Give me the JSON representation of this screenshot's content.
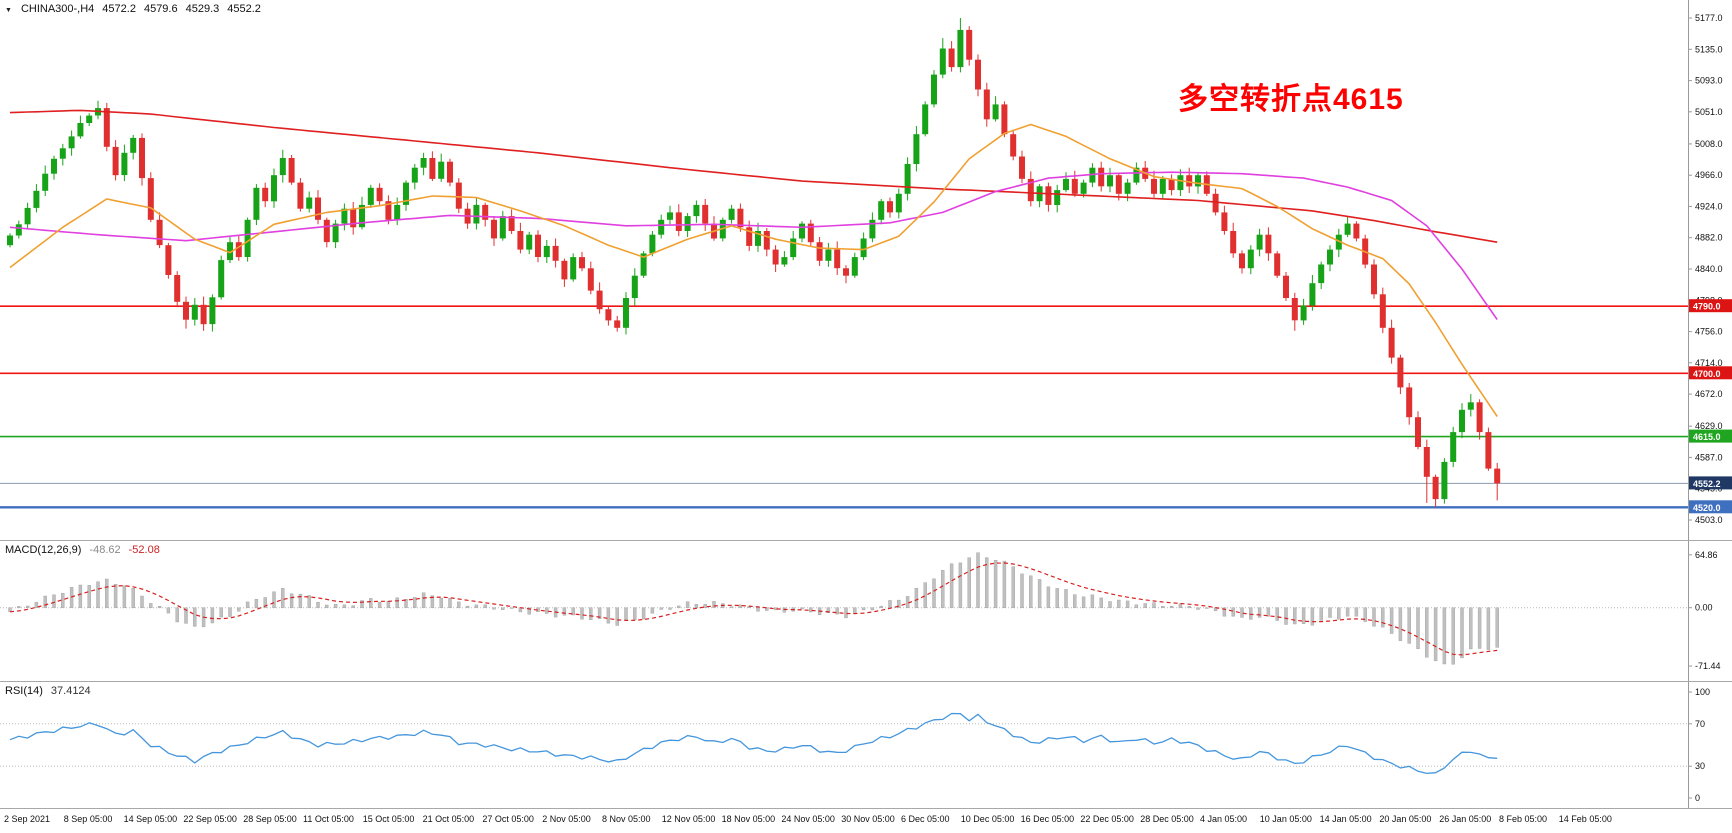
{
  "header": {
    "dropdown_icon": "▼",
    "symbol_period": "CHINA300-,H4",
    "open": "4572.2",
    "high": "4579.6",
    "low": "4529.3",
    "close": "4552.2"
  },
  "chart_data": [
    {
      "type": "candlestick",
      "title": "CHINA300-,H4",
      "annotation": {
        "text": "多空转折点4615",
        "color": "#ff0000"
      },
      "up_color": "#17a317",
      "down_color": "#e02f2f",
      "ylim": [
        4503,
        5177
      ],
      "y_ticks": [
        "5177.0",
        "5135.0",
        "5093.0",
        "5051.0",
        "5008.0",
        "4966.0",
        "4924.0",
        "4882.0",
        "4840.0",
        "4798.0",
        "4756.0",
        "4714.0",
        "4672.0",
        "4629.0",
        "4587.0",
        "4545.0",
        "4503.0"
      ],
      "x_labels": [
        "2 Sep 2021",
        "8 Sep 05:00",
        "14 Sep 05:00",
        "22 Sep 05:00",
        "28 Sep 05:00",
        "11 Oct 05:00",
        "15 Oct 05:00",
        "21 Oct 05:00",
        "27 Oct 05:00",
        "2 Nov 05:00",
        "8 Nov 05:00",
        "12 Nov 05:00",
        "18 Nov 05:00",
        "24 Nov 05:00",
        "30 Nov 05:00",
        "6 Dec 05:00",
        "10 Dec 05:00",
        "16 Dec 05:00",
        "22 Dec 05:00",
        "28 Dec 05:00",
        "4 Jan 05:00",
        "10 Jan 05:00",
        "14 Jan 05:00",
        "20 Jan 05:00",
        "26 Jan 05:00",
        "8 Feb 05:00",
        "14 Feb 05:00"
      ],
      "first_open": 4872,
      "closes": [
        4885,
        4900,
        4922,
        4945,
        4968,
        4988,
        5002,
        5018,
        5036,
        5046,
        5056,
        5004,
        4966,
        4996,
        5016,
        4962,
        4906,
        4872,
        4832,
        4796,
        4772,
        4792,
        4766,
        4802,
        4852,
        4876,
        4856,
        4906,
        4949,
        4931,
        4966,
        4989,
        4956,
        4921,
        4936,
        4906,
        4876,
        4901,
        4921,
        4896,
        4926,
        4949,
        4931,
        4906,
        4926,
        4956,
        4976,
        4989,
        4961,
        4984,
        4956,
        4921,
        4901,
        4926,
        4906,
        4881,
        4911,
        4891,
        4866,
        4886,
        4856,
        4871,
        4851,
        4826,
        4856,
        4841,
        4811,
        4786,
        4771,
        4761,
        4801,
        4831,
        4861,
        4886,
        4906,
        4916,
        4891,
        4911,
        4926,
        4901,
        4881,
        4906,
        4921,
        4896,
        4871,
        4891,
        4866,
        4846,
        4856,
        4881,
        4901,
        4876,
        4851,
        4866,
        4841,
        4831,
        4856,
        4881,
        4906,
        4931,
        4916,
        4941,
        4981,
        5021,
        5061,
        5101,
        5136,
        5111,
        5161,
        5121,
        5081,
        5041,
        5061,
        5021,
        4991,
        4961,
        4931,
        4951,
        4926,
        4946,
        4961,
        4941,
        4956,
        4976,
        4951,
        4966,
        4941,
        4956,
        4976,
        4961,
        4941,
        4961,
        4946,
        4966,
        4951,
        4966,
        4941,
        4916,
        4891,
        4861,
        4841,
        4866,
        4886,
        4861,
        4831,
        4801,
        4771,
        4791,
        4821,
        4846,
        4866,
        4886,
        4901,
        4881,
        4846,
        4806,
        4761,
        4721,
        4681,
        4641,
        4601,
        4561,
        4531,
        4581,
        4621,
        4651,
        4661,
        4621,
        4572,
        4552.2
      ],
      "high_overrides": {
        "10": 5066,
        "106": 5150,
        "108": 5177,
        "166": 4672,
        "169": 4579.6
      },
      "low_overrides": {
        "20": 4760,
        "22": 4757,
        "69": 4756,
        "146": 4757,
        "161": 4526,
        "162": 4520,
        "169": 4529.3
      },
      "ma_lines": [
        {
          "name": "ma-slow-red",
          "color": "#e02020",
          "keyframes": [
            [
              0,
              5050
            ],
            [
              8,
              5053
            ],
            [
              16,
              5048
            ],
            [
              30,
              5030
            ],
            [
              45,
              5013
            ],
            [
              60,
              4996
            ],
            [
              75,
              4976
            ],
            [
              90,
              4958
            ],
            [
              105,
              4948
            ],
            [
              120,
              4940
            ],
            [
              135,
              4932
            ],
            [
              148,
              4918
            ],
            [
              155,
              4905
            ],
            [
              162,
              4890
            ],
            [
              169,
              4876
            ]
          ]
        },
        {
          "name": "ma-mid-magenta",
          "color": "#e040e0",
          "keyframes": [
            [
              0,
              4896
            ],
            [
              10,
              4886
            ],
            [
              20,
              4878
            ],
            [
              30,
              4890
            ],
            [
              40,
              4902
            ],
            [
              50,
              4912
            ],
            [
              60,
              4908
            ],
            [
              70,
              4898
            ],
            [
              80,
              4900
            ],
            [
              90,
              4896
            ],
            [
              100,
              4902
            ],
            [
              106,
              4916
            ],
            [
              112,
              4944
            ],
            [
              118,
              4962
            ],
            [
              124,
              4968
            ],
            [
              132,
              4970
            ],
            [
              140,
              4968
            ],
            [
              147,
              4962
            ],
            [
              152,
              4950
            ],
            [
              157,
              4932
            ],
            [
              161,
              4898
            ],
            [
              165,
              4840
            ],
            [
              169,
              4772
            ]
          ]
        },
        {
          "name": "ma-fast-orange",
          "color": "#f0a030",
          "keyframes": [
            [
              0,
              4842
            ],
            [
              6,
              4896
            ],
            [
              11,
              4934
            ],
            [
              16,
              4922
            ],
            [
              21,
              4880
            ],
            [
              25,
              4862
            ],
            [
              30,
              4900
            ],
            [
              36,
              4916
            ],
            [
              42,
              4925
            ],
            [
              48,
              4938
            ],
            [
              53,
              4936
            ],
            [
              58,
              4918
            ],
            [
              63,
              4898
            ],
            [
              68,
              4872
            ],
            [
              72,
              4856
            ],
            [
              77,
              4880
            ],
            [
              82,
              4898
            ],
            [
              87,
              4880
            ],
            [
              92,
              4868
            ],
            [
              97,
              4866
            ],
            [
              101,
              4884
            ],
            [
              105,
              4930
            ],
            [
              109,
              4988
            ],
            [
              113,
              5022
            ],
            [
              116,
              5034
            ],
            [
              120,
              5018
            ],
            [
              125,
              4988
            ],
            [
              130,
              4964
            ],
            [
              135,
              4955
            ],
            [
              140,
              4948
            ],
            [
              144,
              4924
            ],
            [
              148,
              4894
            ],
            [
              152,
              4872
            ],
            [
              156,
              4854
            ],
            [
              159,
              4820
            ],
            [
              162,
              4768
            ],
            [
              165,
              4712
            ],
            [
              169,
              4642
            ]
          ]
        }
      ],
      "h_levels": [
        {
          "price": 4790,
          "label": "4790.0",
          "color": "#f01414",
          "badge_bg": "#dd1414",
          "thickness": 1.6
        },
        {
          "price": 4700,
          "label": "4700.0",
          "color": "#f01414",
          "badge_bg": "#dd1414",
          "thickness": 1.6
        },
        {
          "price": 4615,
          "label": "4615.0",
          "color": "#1fa51f",
          "badge_bg": "#1fa51f",
          "thickness": 1.6
        },
        {
          "price": 4520,
          "label": "4520.0",
          "color": "#3f6fbf",
          "badge_bg": "#3f6fbf",
          "thickness": 2.4
        }
      ],
      "current_price": {
        "value": 4552.2,
        "label": "4552.2",
        "line_color": "#8c9bb0",
        "badge_bg": "#1f3864"
      }
    },
    {
      "type": "macd-histogram",
      "label": "MACD(12,26,9)",
      "macd_value": "-48.62",
      "signal_value": "-52.08",
      "y_ticks": [
        "64.86",
        "0.00",
        "-71.44"
      ],
      "range": [
        -80,
        72
      ],
      "histogram_color": "#c0c0c0",
      "signal_color": "#d82020",
      "keyframes": [
        [
          0,
          -5
        ],
        [
          3,
          8
        ],
        [
          6,
          20
        ],
        [
          9,
          30
        ],
        [
          11,
          33
        ],
        [
          13,
          28
        ],
        [
          15,
          15
        ],
        [
          17,
          0
        ],
        [
          19,
          -15
        ],
        [
          21,
          -25
        ],
        [
          23,
          -18
        ],
        [
          25,
          -10
        ],
        [
          27,
          5
        ],
        [
          29,
          15
        ],
        [
          31,
          22
        ],
        [
          33,
          17
        ],
        [
          35,
          8
        ],
        [
          37,
          2
        ],
        [
          39,
          5
        ],
        [
          41,
          10
        ],
        [
          43,
          8
        ],
        [
          45,
          12
        ],
        [
          47,
          16
        ],
        [
          49,
          14
        ],
        [
          51,
          6
        ],
        [
          53,
          3
        ],
        [
          55,
          0
        ],
        [
          57,
          -3
        ],
        [
          59,
          -6
        ],
        [
          61,
          -8
        ],
        [
          63,
          -10
        ],
        [
          65,
          -12
        ],
        [
          67,
          -16
        ],
        [
          69,
          -20
        ],
        [
          71,
          -15
        ],
        [
          73,
          -8
        ],
        [
          75,
          0
        ],
        [
          77,
          5
        ],
        [
          79,
          6
        ],
        [
          81,
          5
        ],
        [
          83,
          2
        ],
        [
          85,
          -2
        ],
        [
          87,
          -5
        ],
        [
          89,
          -3
        ],
        [
          91,
          -5
        ],
        [
          93,
          -8
        ],
        [
          95,
          -10
        ],
        [
          97,
          -5
        ],
        [
          99,
          3
        ],
        [
          101,
          10
        ],
        [
          103,
          22
        ],
        [
          105,
          38
        ],
        [
          107,
          52
        ],
        [
          109,
          62
        ],
        [
          110,
          65
        ],
        [
          112,
          60
        ],
        [
          114,
          50
        ],
        [
          116,
          38
        ],
        [
          118,
          28
        ],
        [
          120,
          20
        ],
        [
          122,
          15
        ],
        [
          124,
          12
        ],
        [
          126,
          8
        ],
        [
          128,
          6
        ],
        [
          130,
          4
        ],
        [
          132,
          3
        ],
        [
          134,
          2
        ],
        [
          136,
          -2
        ],
        [
          138,
          -8
        ],
        [
          140,
          -14
        ],
        [
          142,
          -11
        ],
        [
          144,
          -15
        ],
        [
          146,
          -22
        ],
        [
          148,
          -19
        ],
        [
          150,
          -14
        ],
        [
          152,
          -10
        ],
        [
          154,
          -16
        ],
        [
          156,
          -26
        ],
        [
          158,
          -38
        ],
        [
          160,
          -52
        ],
        [
          162,
          -65
        ],
        [
          163,
          -71.44
        ],
        [
          164,
          -68
        ],
        [
          165,
          -60
        ],
        [
          166,
          -53
        ],
        [
          167,
          -50
        ],
        [
          168,
          -49
        ],
        [
          169,
          -48.62
        ]
      ]
    },
    {
      "type": "line",
      "label": "RSI(14)",
      "current": "37.4124",
      "line_color": "#4596dc",
      "y_ticks": [
        "100",
        "70",
        "30",
        "0"
      ],
      "levels": [
        70,
        30
      ],
      "range": [
        0,
        100
      ],
      "keyframes": [
        [
          0,
          55
        ],
        [
          4,
          62
        ],
        [
          8,
          68
        ],
        [
          10,
          70
        ],
        [
          12,
          60
        ],
        [
          14,
          63
        ],
        [
          16,
          50
        ],
        [
          19,
          40
        ],
        [
          21,
          35
        ],
        [
          23,
          42
        ],
        [
          26,
          50
        ],
        [
          29,
          58
        ],
        [
          31,
          62
        ],
        [
          33,
          55
        ],
        [
          35,
          50
        ],
        [
          38,
          52
        ],
        [
          41,
          56
        ],
        [
          44,
          58
        ],
        [
          47,
          62
        ],
        [
          49,
          60
        ],
        [
          51,
          52
        ],
        [
          54,
          50
        ],
        [
          57,
          46
        ],
        [
          60,
          44
        ],
        [
          63,
          40
        ],
        [
          66,
          38
        ],
        [
          69,
          34
        ],
        [
          71,
          42
        ],
        [
          74,
          52
        ],
        [
          76,
          56
        ],
        [
          78,
          58
        ],
        [
          80,
          52
        ],
        [
          82,
          56
        ],
        [
          84,
          48
        ],
        [
          86,
          44
        ],
        [
          88,
          46
        ],
        [
          90,
          50
        ],
        [
          92,
          45
        ],
        [
          94,
          42
        ],
        [
          96,
          48
        ],
        [
          98,
          54
        ],
        [
          100,
          58
        ],
        [
          102,
          64
        ],
        [
          104,
          70
        ],
        [
          106,
          76
        ],
        [
          108,
          80
        ],
        [
          109,
          74
        ],
        [
          110,
          77
        ],
        [
          112,
          68
        ],
        [
          114,
          60
        ],
        [
          116,
          52
        ],
        [
          118,
          55
        ],
        [
          120,
          58
        ],
        [
          122,
          54
        ],
        [
          124,
          58
        ],
        [
          126,
          52
        ],
        [
          128,
          56
        ],
        [
          130,
          52
        ],
        [
          132,
          55
        ],
        [
          134,
          52
        ],
        [
          136,
          46
        ],
        [
          138,
          40
        ],
        [
          140,
          36
        ],
        [
          142,
          44
        ],
        [
          144,
          38
        ],
        [
          146,
          32
        ],
        [
          148,
          38
        ],
        [
          150,
          44
        ],
        [
          152,
          50
        ],
        [
          154,
          42
        ],
        [
          156,
          35
        ],
        [
          158,
          30
        ],
        [
          160,
          26
        ],
        [
          162,
          22
        ],
        [
          163,
          30
        ],
        [
          164,
          36
        ],
        [
          165,
          42
        ],
        [
          166,
          45
        ],
        [
          167,
          40
        ],
        [
          168,
          38
        ],
        [
          169,
          37.41
        ]
      ]
    }
  ]
}
